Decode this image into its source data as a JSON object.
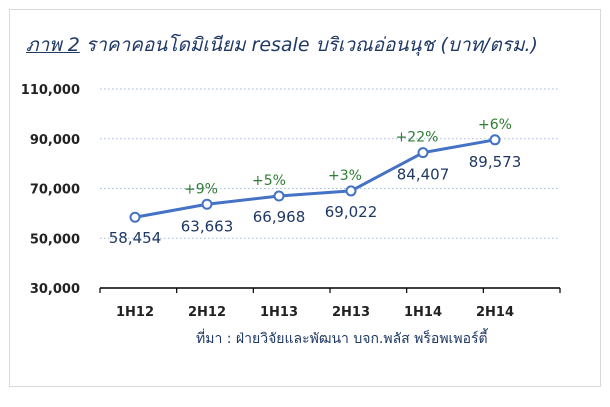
{
  "title": {
    "prefix": "ภาพ 2",
    "main": "ราคาคอนโดมิเนียม resale บริเวณอ่อนนุช (บาท/ตรม.)"
  },
  "source": "ที่มา : ฝ่ายวิจัยและพัฒนา บจก.พลัส พร็อพเพอร์ตี้",
  "colors": {
    "line": "#4472c4",
    "point_fill": "#ffffff",
    "value_label": "#1f3864",
    "change_label": "#2e7d32",
    "gridline": "#a6b8e0",
    "axis": "#000000"
  },
  "chart_data": {
    "type": "line",
    "categories": [
      "1H12",
      "2H12",
      "1H13",
      "2H13",
      "1H14",
      "2H14"
    ],
    "series": [
      {
        "values": [
          58454,
          63663,
          66968,
          69022,
          84407,
          89573
        ]
      }
    ],
    "value_labels": [
      "58,454",
      "63,663",
      "66,968",
      "69,022",
      "84,407",
      "89,573"
    ],
    "change_labels": [
      "",
      "+9%",
      "+5%",
      "+3%",
      "+22%",
      "+6%"
    ],
    "yticks": [
      30000,
      50000,
      70000,
      90000,
      110000
    ],
    "ytick_labels": [
      "30,000",
      "50,000",
      "70,000",
      "90,000",
      "110,000"
    ],
    "ylim": [
      30000,
      110000
    ],
    "grid": "horizontal-dotted",
    "legend": "none"
  }
}
